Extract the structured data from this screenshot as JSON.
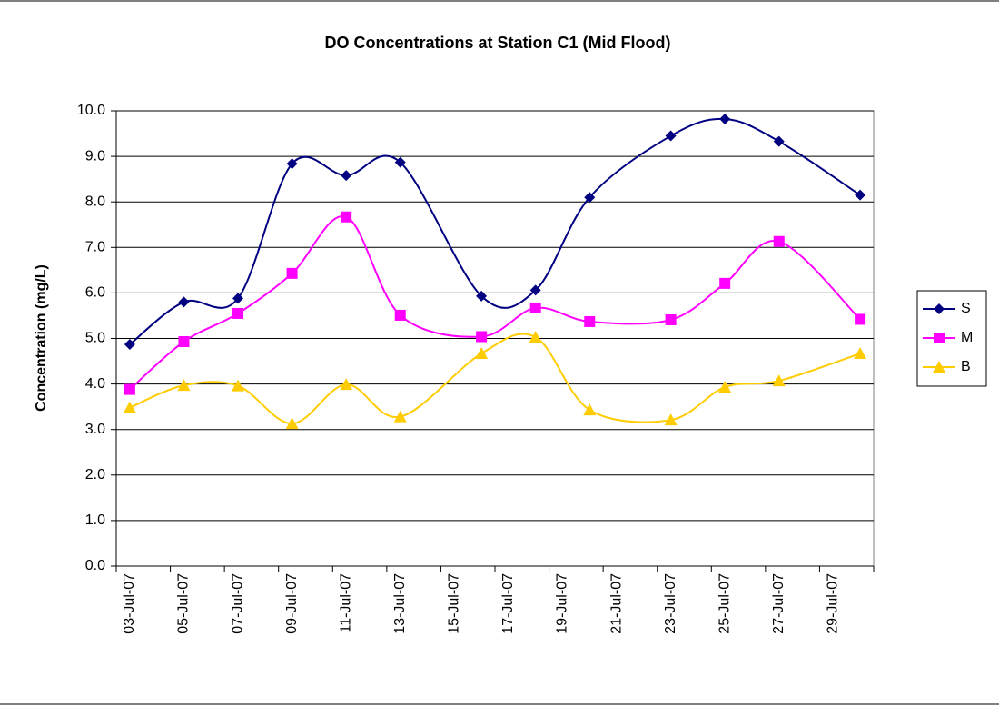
{
  "chart_data": {
    "type": "line",
    "title": "DO Concentrations at Station C1 (Mid Flood)",
    "y_label": "Concentration (mg/L)",
    "x": [
      "2007-07-03",
      "2007-07-05",
      "2007-07-07",
      "2007-07-09",
      "2007-07-11",
      "2007-07-13",
      "2007-07-16",
      "2007-07-18",
      "2007-07-20",
      "2007-07-23",
      "2007-07-25",
      "2007-07-27",
      "2007-07-30"
    ],
    "series": [
      {
        "name": "S",
        "color": "#000080",
        "marker": "diamond",
        "values": [
          4.87,
          5.8,
          5.88,
          8.84,
          8.58,
          8.87,
          5.93,
          6.06,
          8.1,
          9.45,
          9.82,
          9.33,
          8.15
        ]
      },
      {
        "name": "M",
        "color": "#ff00ff",
        "marker": "square",
        "values": [
          3.88,
          4.93,
          5.55,
          6.43,
          7.67,
          5.51,
          5.04,
          5.67,
          5.37,
          5.41,
          6.21,
          7.13,
          5.42
        ]
      },
      {
        "name": "B",
        "color": "#ffcc00",
        "marker": "triangle",
        "values": [
          3.48,
          3.97,
          3.96,
          3.13,
          3.99,
          3.28,
          4.67,
          5.03,
          3.43,
          3.21,
          3.93,
          4.07,
          4.67
        ]
      }
    ],
    "xlim": [
      "2007-07-03",
      "2007-07-31"
    ],
    "xticks": [
      {
        "value": "2007-07-03",
        "label": "03-Jul-07"
      },
      {
        "value": "2007-07-05",
        "label": "05-Jul-07"
      },
      {
        "value": "2007-07-07",
        "label": "07-Jul-07"
      },
      {
        "value": "2007-07-09",
        "label": "09-Jul-07"
      },
      {
        "value": "2007-07-11",
        "label": "11-Jul-07"
      },
      {
        "value": "2007-07-13",
        "label": "13-Jul-07"
      },
      {
        "value": "2007-07-15",
        "label": "15-Jul-07"
      },
      {
        "value": "2007-07-17",
        "label": "17-Jul-07"
      },
      {
        "value": "2007-07-19",
        "label": "19-Jul-07"
      },
      {
        "value": "2007-07-21",
        "label": "21-Jul-07"
      },
      {
        "value": "2007-07-23",
        "label": "23-Jul-07"
      },
      {
        "value": "2007-07-25",
        "label": "25-Jul-07"
      },
      {
        "value": "2007-07-27",
        "label": "27-Jul-07"
      },
      {
        "value": "2007-07-29",
        "label": "29-Jul-07"
      }
    ],
    "ylim": [
      0,
      10
    ],
    "yticks": [
      {
        "value": 0,
        "label": "0.0"
      },
      {
        "value": 1,
        "label": "1.0"
      },
      {
        "value": 2,
        "label": "2.0"
      },
      {
        "value": 3,
        "label": "3.0"
      },
      {
        "value": 4,
        "label": "4.0"
      },
      {
        "value": 5,
        "label": "5.0"
      },
      {
        "value": 6,
        "label": "6.0"
      },
      {
        "value": 7,
        "label": "7.0"
      },
      {
        "value": 8,
        "label": "8.0"
      },
      {
        "value": 9,
        "label": "9.0"
      },
      {
        "value": 10,
        "label": "10.0"
      }
    ],
    "grid": true,
    "smooth": true,
    "legend": "right"
  }
}
